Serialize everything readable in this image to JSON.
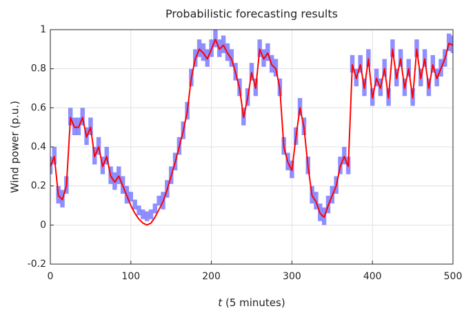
{
  "chart_data": {
    "type": "line",
    "title": "Probabilistic forecasting results",
    "ylabel": "Wind power (p.u.)",
    "xlabel_var": "t",
    "xlabel": "(5 minutes)",
    "x": [
      0,
      5,
      10,
      15,
      20,
      25,
      30,
      35,
      40,
      45,
      50,
      55,
      60,
      65,
      70,
      75,
      80,
      85,
      90,
      95,
      100,
      105,
      110,
      115,
      120,
      125,
      130,
      135,
      140,
      145,
      150,
      155,
      160,
      165,
      170,
      175,
      180,
      185,
      190,
      195,
      200,
      205,
      210,
      215,
      220,
      225,
      230,
      235,
      240,
      245,
      250,
      255,
      260,
      265,
      270,
      275,
      280,
      285,
      290,
      295,
      300,
      305,
      310,
      315,
      320,
      325,
      330,
      335,
      340,
      345,
      350,
      355,
      360,
      365,
      370,
      375,
      380,
      385,
      390,
      395,
      400,
      405,
      410,
      415,
      420,
      425,
      430,
      435,
      440,
      445,
      450,
      455,
      460,
      465,
      470,
      475,
      480,
      485,
      490,
      495,
      500
    ],
    "series": [
      {
        "color": "#ff0000",
        "values": [
          0.3,
          0.35,
          0.15,
          0.13,
          0.2,
          0.55,
          0.5,
          0.5,
          0.55,
          0.45,
          0.5,
          0.35,
          0.4,
          0.3,
          0.35,
          0.25,
          0.22,
          0.25,
          0.2,
          0.15,
          0.1,
          0.06,
          0.03,
          0.01,
          0,
          0.01,
          0.04,
          0.08,
          0.12,
          0.18,
          0.25,
          0.32,
          0.4,
          0.48,
          0.58,
          0.75,
          0.85,
          0.9,
          0.88,
          0.85,
          0.9,
          0.95,
          0.9,
          0.92,
          0.88,
          0.85,
          0.78,
          0.7,
          0.55,
          0.65,
          0.78,
          0.7,
          0.9,
          0.85,
          0.88,
          0.82,
          0.8,
          0.7,
          0.4,
          0.32,
          0.28,
          0.45,
          0.6,
          0.5,
          0.3,
          0.15,
          0.12,
          0.06,
          0.04,
          0.1,
          0.15,
          0.2,
          0.3,
          0.35,
          0.3,
          0.82,
          0.75,
          0.82,
          0.7,
          0.85,
          0.65,
          0.75,
          0.7,
          0.8,
          0.65,
          0.9,
          0.75,
          0.85,
          0.7,
          0.8,
          0.65,
          0.9,
          0.75,
          0.85,
          0.7,
          0.82,
          0.75,
          0.8,
          0.85,
          0.93,
          0.92
        ]
      }
    ],
    "band": {
      "color": "#7b7bff",
      "upper": [
        0.35,
        0.4,
        0.2,
        0.18,
        0.25,
        0.6,
        0.55,
        0.55,
        0.6,
        0.5,
        0.55,
        0.4,
        0.45,
        0.35,
        0.4,
        0.3,
        0.27,
        0.3,
        0.25,
        0.2,
        0.17,
        0.13,
        0.1,
        0.08,
        0.07,
        0.08,
        0.11,
        0.15,
        0.17,
        0.23,
        0.3,
        0.37,
        0.45,
        0.53,
        0.63,
        0.8,
        0.9,
        0.95,
        0.93,
        0.9,
        0.95,
        1,
        0.95,
        0.97,
        0.93,
        0.9,
        0.83,
        0.75,
        0.6,
        0.7,
        0.83,
        0.75,
        0.95,
        0.9,
        0.93,
        0.87,
        0.85,
        0.75,
        0.45,
        0.37,
        0.33,
        0.5,
        0.65,
        0.55,
        0.35,
        0.2,
        0.17,
        0.11,
        0.09,
        0.15,
        0.2,
        0.25,
        0.35,
        0.4,
        0.35,
        0.87,
        0.8,
        0.87,
        0.75,
        0.9,
        0.7,
        0.8,
        0.75,
        0.85,
        0.7,
        0.95,
        0.8,
        0.9,
        0.75,
        0.85,
        0.7,
        0.95,
        0.8,
        0.9,
        0.75,
        0.87,
        0.8,
        0.85,
        0.9,
        0.98,
        0.97
      ],
      "lower": [
        0.26,
        0.31,
        0.11,
        0.09,
        0.16,
        0.51,
        0.46,
        0.46,
        0.51,
        0.41,
        0.46,
        0.31,
        0.36,
        0.26,
        0.31,
        0.21,
        0.18,
        0.21,
        0.16,
        0.11,
        0.12,
        0.08,
        0.05,
        0.03,
        0.02,
        0.03,
        0.06,
        0.1,
        0.08,
        0.14,
        0.21,
        0.28,
        0.36,
        0.44,
        0.54,
        0.71,
        0.81,
        0.86,
        0.84,
        0.81,
        0.86,
        0.91,
        0.86,
        0.88,
        0.84,
        0.81,
        0.74,
        0.66,
        0.51,
        0.61,
        0.74,
        0.66,
        0.86,
        0.81,
        0.84,
        0.78,
        0.76,
        0.66,
        0.36,
        0.28,
        0.24,
        0.41,
        0.56,
        0.46,
        0.26,
        0.11,
        0.08,
        0.02,
        0,
        0.06,
        0.11,
        0.16,
        0.26,
        0.31,
        0.26,
        0.78,
        0.71,
        0.78,
        0.66,
        0.81,
        0.61,
        0.71,
        0.66,
        0.76,
        0.61,
        0.86,
        0.71,
        0.81,
        0.66,
        0.76,
        0.61,
        0.86,
        0.71,
        0.81,
        0.66,
        0.78,
        0.71,
        0.76,
        0.81,
        0.89,
        0.88
      ]
    },
    "xlim": [
      0,
      500
    ],
    "xticks": [
      0,
      100,
      200,
      300,
      400,
      500
    ],
    "ylim": [
      -0.2,
      1
    ],
    "yticks": [
      -0.2,
      0,
      0.2,
      0.4,
      0.6,
      0.8,
      1
    ],
    "grid": true
  }
}
